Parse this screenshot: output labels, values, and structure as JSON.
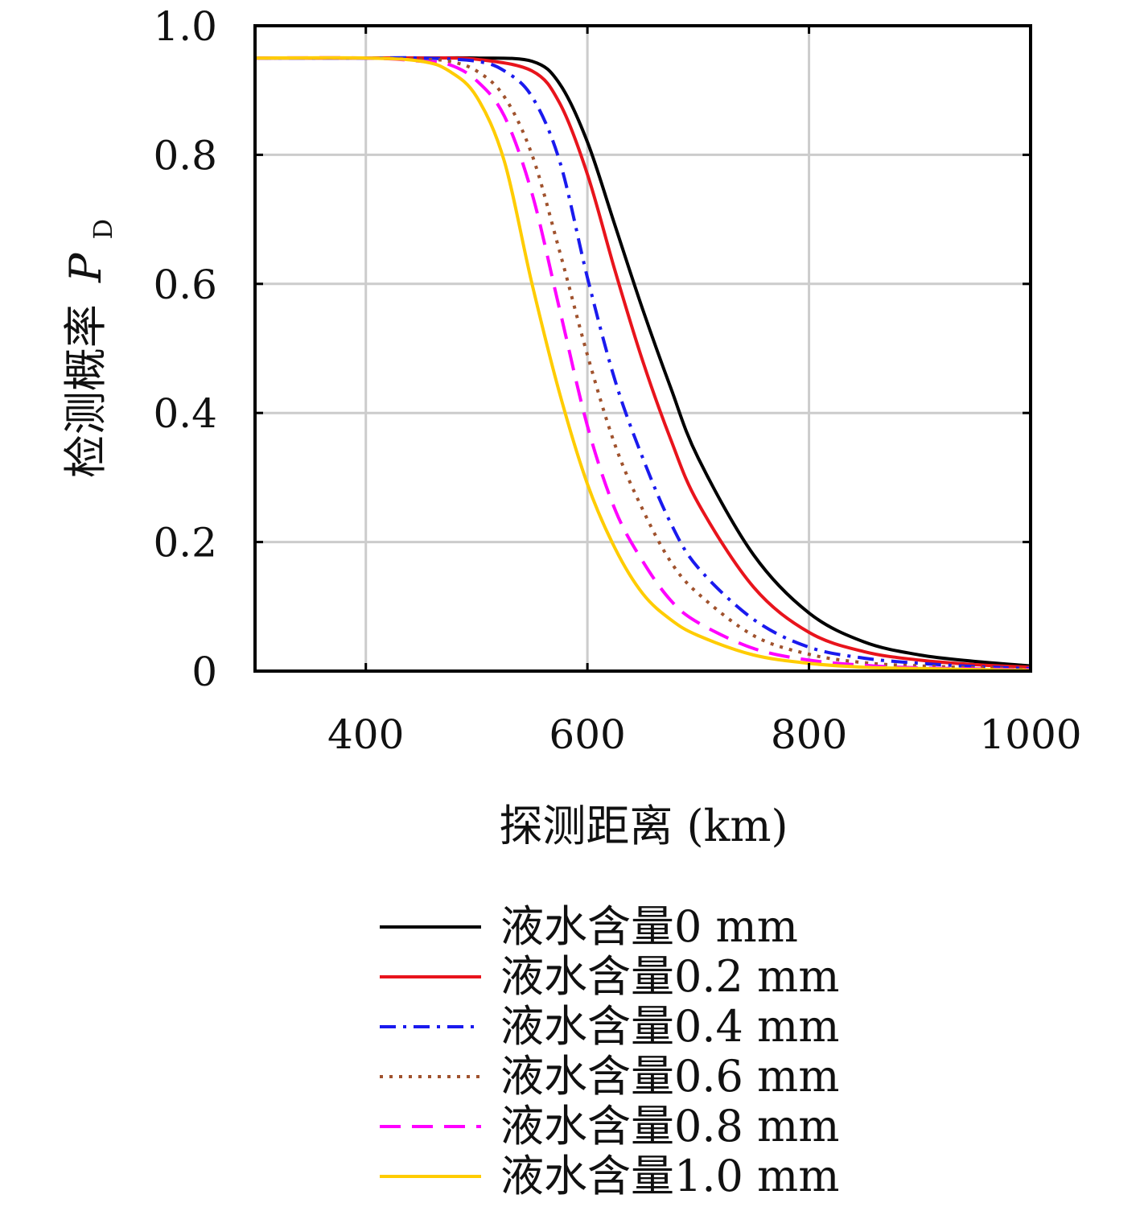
{
  "chart_data": {
    "type": "line",
    "xlabel": "探测距离 (km)",
    "ylabel": "检测概率",
    "ylabel_symbol": "P",
    "ylabel_subscript": "D",
    "xlim": [
      300,
      1000
    ],
    "ylim": [
      0,
      1.0
    ],
    "x_ticks": [
      400,
      600,
      800,
      1000
    ],
    "y_ticks": [
      0,
      0.2,
      0.4,
      0.6,
      0.8,
      1.0
    ],
    "x_tick_labels": [
      "400",
      "600",
      "800",
      "1000"
    ],
    "y_tick_labels": [
      "0",
      "0.2",
      "0.4",
      "0.6",
      "0.8",
      "1.0"
    ],
    "grid": true,
    "legend_position": "bottom-center",
    "series": [
      {
        "name": "液水含量0 mm",
        "color": "#000000",
        "dash": "solid",
        "x": [
          300,
          400,
          450,
          500,
          550,
          575,
          600,
          625,
          650,
          675,
          700,
          750,
          800,
          850,
          900,
          950,
          1000
        ],
        "y": [
          0.95,
          0.95,
          0.95,
          0.95,
          0.945,
          0.91,
          0.82,
          0.69,
          0.56,
          0.44,
          0.33,
          0.18,
          0.09,
          0.045,
          0.025,
          0.015,
          0.008
        ]
      },
      {
        "name": "液水含量0.2 mm",
        "color": "#e8141c",
        "dash": "solid",
        "x": [
          300,
          400,
          450,
          500,
          550,
          575,
          600,
          625,
          650,
          675,
          700,
          750,
          800,
          850,
          900,
          950,
          1000
        ],
        "y": [
          0.95,
          0.95,
          0.95,
          0.948,
          0.93,
          0.88,
          0.77,
          0.62,
          0.48,
          0.36,
          0.26,
          0.13,
          0.06,
          0.03,
          0.017,
          0.01,
          0.006
        ]
      },
      {
        "name": "液水含量0.4 mm",
        "color": "#1a1aee",
        "dash": "dashdot",
        "x": [
          300,
          400,
          450,
          500,
          525,
          550,
          575,
          600,
          625,
          650,
          675,
          700,
          750,
          800,
          850,
          900,
          950,
          1000
        ],
        "y": [
          0.95,
          0.95,
          0.95,
          0.945,
          0.93,
          0.89,
          0.79,
          0.61,
          0.45,
          0.33,
          0.23,
          0.16,
          0.08,
          0.037,
          0.02,
          0.012,
          0.007,
          0.004
        ]
      },
      {
        "name": "液水含量0.6 mm",
        "color": "#a0522d",
        "dash": "dotted",
        "x": [
          300,
          400,
          450,
          475,
          500,
          525,
          550,
          575,
          600,
          625,
          650,
          675,
          700,
          750,
          800,
          850,
          900,
          1000
        ],
        "y": [
          0.95,
          0.95,
          0.948,
          0.945,
          0.93,
          0.89,
          0.8,
          0.65,
          0.49,
          0.35,
          0.25,
          0.17,
          0.12,
          0.055,
          0.026,
          0.013,
          0.008,
          0.003
        ]
      },
      {
        "name": "液水含量0.8 mm",
        "color": "#ff00ff",
        "dash": "dashed",
        "x": [
          300,
          400,
          450,
          475,
          500,
          525,
          550,
          575,
          600,
          625,
          650,
          675,
          700,
          750,
          800,
          850,
          900,
          1000
        ],
        "y": [
          0.95,
          0.95,
          0.945,
          0.94,
          0.915,
          0.86,
          0.74,
          0.56,
          0.38,
          0.25,
          0.17,
          0.11,
          0.075,
          0.035,
          0.017,
          0.009,
          0.005,
          0.002
        ]
      },
      {
        "name": "液水含量1.0 mm",
        "color": "#ffcc00",
        "dash": "solid",
        "x": [
          300,
          400,
          450,
          475,
          500,
          525,
          550,
          575,
          600,
          625,
          650,
          675,
          700,
          750,
          800,
          850,
          900,
          1000
        ],
        "y": [
          0.95,
          0.95,
          0.945,
          0.93,
          0.89,
          0.79,
          0.6,
          0.43,
          0.29,
          0.19,
          0.12,
          0.08,
          0.055,
          0.025,
          0.012,
          0.006,
          0.004,
          0.001
        ]
      }
    ]
  }
}
